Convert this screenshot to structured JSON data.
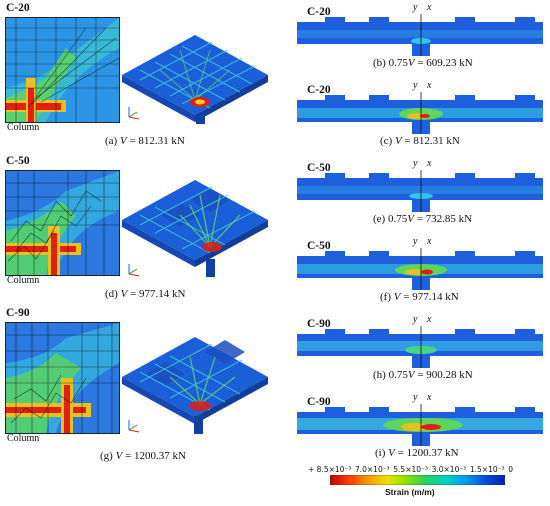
{
  "panels": [
    {
      "specimen": "C-20",
      "column_label": "Column",
      "caption_prefix": "(a)",
      "caption_v": "V",
      "caption_value": "= 812.31 kN"
    },
    {
      "specimen": "C-50",
      "column_label": "Column",
      "caption_prefix": "(d)",
      "caption_v": "V",
      "caption_value": "= 977.14 kN"
    },
    {
      "specimen": "C-90",
      "column_label": "Column",
      "caption_prefix": "(g)",
      "caption_v": "V",
      "caption_value": "= 1200.37 kN"
    }
  ],
  "sections": [
    {
      "specimen": "C-20",
      "caption_prefix": "(b) 0.75",
      "caption_v": "V",
      "caption_value": "= 609.23 kN",
      "axis_y": "y",
      "axis_x": "x"
    },
    {
      "specimen": "C-20",
      "caption_prefix": "(c)",
      "caption_v": "V",
      "caption_value": "= 812.31 kN",
      "axis_y": "y",
      "axis_x": "x"
    },
    {
      "specimen": "C-50",
      "caption_prefix": "(e) 0.75",
      "caption_v": "V",
      "caption_value": "= 732.85 kN",
      "axis_y": "y",
      "axis_x": "x"
    },
    {
      "specimen": "C-50",
      "caption_prefix": "(f)",
      "caption_v": "V",
      "caption_value": "= 977.14 kN",
      "axis_y": "y",
      "axis_x": "x"
    },
    {
      "specimen": "C-90",
      "caption_prefix": "(h) 0.75",
      "caption_v": "V",
      "caption_value": "= 900.28 kN",
      "axis_y": "y",
      "axis_x": "x"
    },
    {
      "specimen": "C-90",
      "caption_prefix": "(i)",
      "caption_v": "V",
      "caption_value": "= 1200.37 kN",
      "axis_y": "y",
      "axis_x": "x"
    }
  ],
  "legend": {
    "ticks": [
      "+ 8.5×10⁻³",
      "7.0×10⁻³",
      "5.5×10⁻³",
      "3.0×10⁻³",
      "1.5×10⁻³",
      "0"
    ],
    "title": "Strain (m/m)",
    "colors": [
      "#c40000",
      "#ff3a00",
      "#ff9a00",
      "#e8e200",
      "#8fe000",
      "#22d060",
      "#00d6c0",
      "#009cf0",
      "#0055e0",
      "#0018b0"
    ]
  },
  "colors": {
    "contour_blue": "#1a5fd8",
    "cyan": "#27c3e8",
    "green": "#57d357",
    "red": "#e01818",
    "yellow": "#f0e020"
  }
}
